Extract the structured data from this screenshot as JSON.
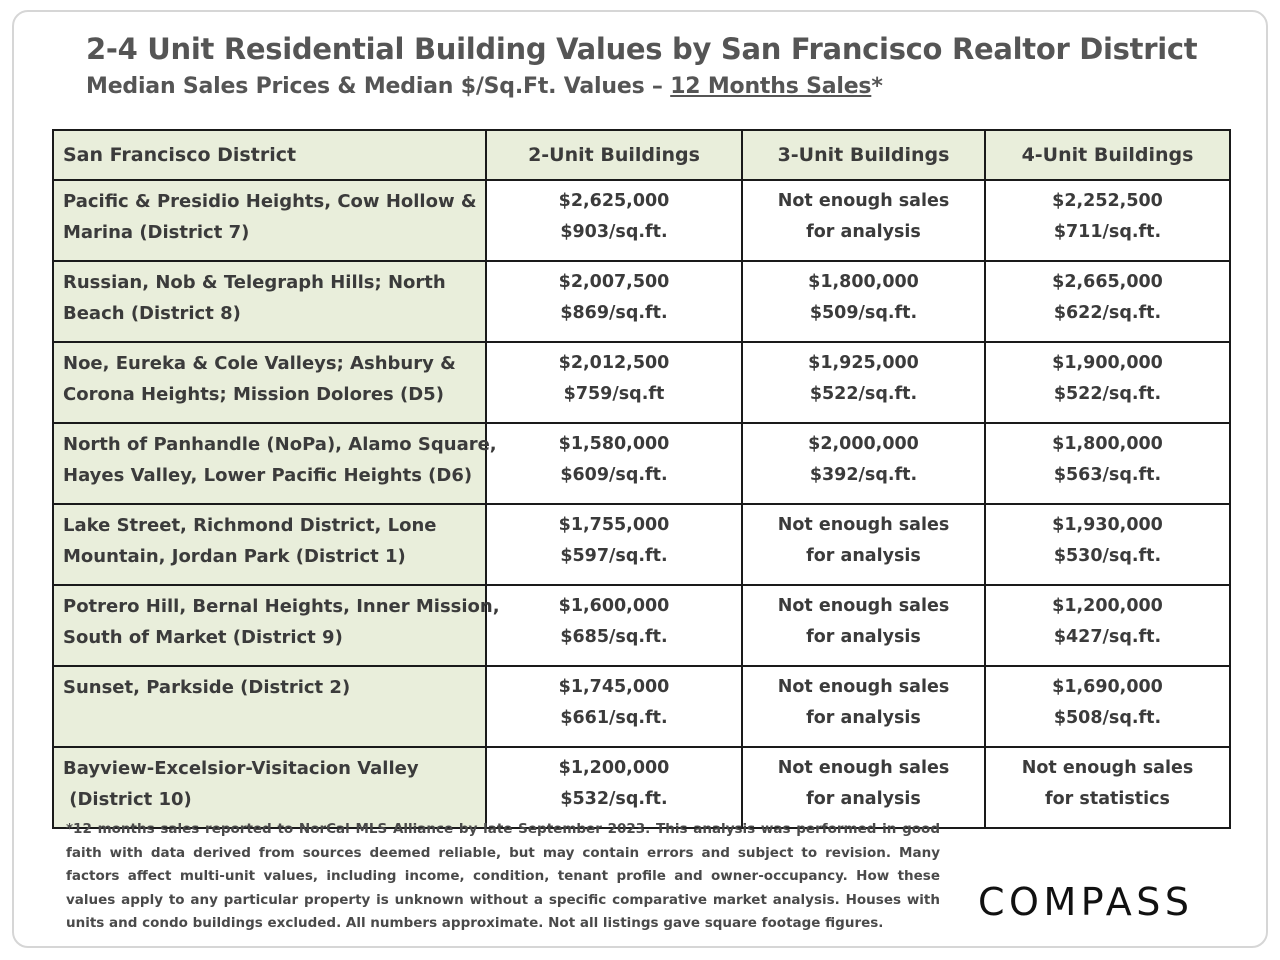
{
  "title": "2-4 Unit Residential Building Values by San Francisco Realtor District",
  "subtitle": {
    "lead": "Median Sales Prices & Median $/Sq.Ft. Values – ",
    "underlined": "12 Months Sales",
    "tail": "*"
  },
  "table": {
    "headers": [
      "San Francisco District",
      "2-Unit Buildings",
      "3-Unit Buildings",
      "4-Unit Buildings"
    ],
    "rows": [
      {
        "district": [
          "Pacific & Presidio Heights, Cow Hollow &",
          "Marina (District 7)"
        ],
        "two": [
          "$2,625,000",
          "$903/sq.ft."
        ],
        "three": [
          "Not enough sales",
          "for analysis"
        ],
        "four": [
          "$2,252,500",
          "$711/sq.ft."
        ]
      },
      {
        "district": [
          "Russian, Nob & Telegraph Hills; North",
          "Beach (District 8)"
        ],
        "two": [
          "$2,007,500",
          "$869/sq.ft."
        ],
        "three": [
          "$1,800,000",
          "$509/sq.ft."
        ],
        "four": [
          "$2,665,000",
          "$622/sq.ft."
        ]
      },
      {
        "district": [
          "Noe, Eureka & Cole Valleys; Ashbury &",
          "Corona Heights; Mission Dolores (D5)"
        ],
        "two": [
          "$2,012,500",
          "$759/sq.ft"
        ],
        "three": [
          "$1,925,000",
          "$522/sq.ft."
        ],
        "four": [
          "$1,900,000",
          "$522/sq.ft."
        ]
      },
      {
        "district": [
          "North of Panhandle (NoPa), Alamo Square,",
          "Hayes Valley, Lower Pacific Heights (D6)"
        ],
        "two": [
          "$1,580,000",
          "$609/sq.ft."
        ],
        "three": [
          "$2,000,000",
          "$392/sq.ft."
        ],
        "four": [
          "$1,800,000",
          "$563/sq.ft."
        ]
      },
      {
        "district": [
          "Lake Street, Richmond District, Lone",
          "Mountain, Jordan Park (District 1)"
        ],
        "two": [
          "$1,755,000",
          "$597/sq.ft."
        ],
        "three": [
          "Not enough sales",
          "for analysis"
        ],
        "four": [
          "$1,930,000",
          "$530/sq.ft."
        ]
      },
      {
        "district": [
          "Potrero Hill, Bernal Heights, Inner Mission,",
          "South of Market (District 9)"
        ],
        "two": [
          "$1,600,000",
          "$685/sq.ft."
        ],
        "three": [
          "Not enough sales",
          "for analysis"
        ],
        "four": [
          "$1,200,000",
          "$427/sq.ft."
        ]
      },
      {
        "district": [
          "Sunset, Parkside (District 2)",
          ""
        ],
        "two": [
          "$1,745,000",
          "$661/sq.ft."
        ],
        "three": [
          "Not enough sales",
          "for analysis"
        ],
        "four": [
          "$1,690,000",
          "$508/sq.ft."
        ]
      },
      {
        "district": [
          "Bayview-Excelsior-Visitacion Valley",
          " (District 10)"
        ],
        "two": [
          "$1,200,000",
          "$532/sq.ft."
        ],
        "three": [
          "Not enough sales",
          "for analysis"
        ],
        "four": [
          "Not enough sales",
          "for statistics"
        ]
      }
    ]
  },
  "footnote": "*12 months sales reported to NorCal MLS Alliance by late September 2023. This analysis was performed in good faith with data derived from sources deemed reliable, but may contain errors and subject to revision. Many factors affect multi-unit values, including income, condition, tenant profile and owner-occupancy. How these values apply to any particular property is unknown without a specific comparative market analysis. Houses with units and condo buildings excluded. All numbers approximate. Not all listings gave square footage figures.",
  "logo": "COMPASS"
}
